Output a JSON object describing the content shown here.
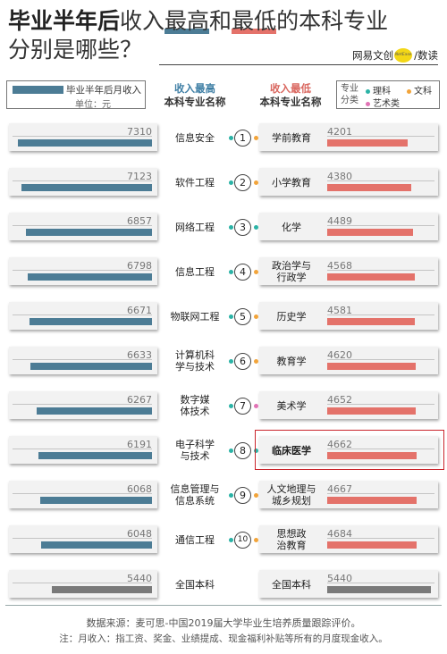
{
  "title": {
    "part_bold": "毕业半年后",
    "part_a": "收入",
    "part_b": "最高",
    "part_c": "和",
    "part_d": "最低",
    "part_e": "的本科专业",
    "line2": "分别是哪些？"
  },
  "brand": {
    "name": "网易文创",
    "badge": "NetEase",
    "channel": "数读"
  },
  "legend": {
    "series_label": "毕业半年后月收入",
    "unit": "单位：元"
  },
  "headers": {
    "left_top": "收入最高",
    "left_sub": "本科专业名称",
    "right_top": "收入最低",
    "right_sub": "本科专业名称"
  },
  "category_legend": {
    "label": "专业分类",
    "items": [
      {
        "name": "理科",
        "color": "#2bb3a6"
      },
      {
        "name": "文科",
        "color": "#f2a43a"
      },
      {
        "name": "艺术类",
        "color": "#e173b5"
      }
    ]
  },
  "chart_data": {
    "type": "bar",
    "xlim": [
      0,
      8000
    ],
    "top": [
      {
        "rank": "1",
        "major": "信息安全",
        "value": 7310,
        "category": "理科"
      },
      {
        "rank": "2",
        "major": "软件工程",
        "value": 7123,
        "category": "理科"
      },
      {
        "rank": "3",
        "major": "网络工程",
        "value": 6857,
        "category": "理科"
      },
      {
        "rank": "4",
        "major": "信息工程",
        "value": 6798,
        "category": "理科"
      },
      {
        "rank": "5",
        "major": "物联网工程",
        "value": 6671,
        "category": "理科"
      },
      {
        "rank": "6",
        "major": "计算机科学与技术",
        "value": 6633,
        "category": "理科"
      },
      {
        "rank": "7",
        "major": "数字媒体技术",
        "value": 6267,
        "category": "理科"
      },
      {
        "rank": "8",
        "major": "电子科学与技术",
        "value": 6191,
        "category": "理科"
      },
      {
        "rank": "9",
        "major": "信息管理与信息系统",
        "value": 6068,
        "category": "理科"
      },
      {
        "rank": "10",
        "major": "通信工程",
        "value": 6048,
        "category": "理科"
      }
    ],
    "bottom": [
      {
        "major": "学前教育",
        "value": 4201,
        "category": "文科"
      },
      {
        "major": "小学教育",
        "value": 4380,
        "category": "文科"
      },
      {
        "major": "化学",
        "value": 4489,
        "category": "理科"
      },
      {
        "major": "政治学与行政学",
        "value": 4568,
        "category": "文科"
      },
      {
        "major": "历史学",
        "value": 4581,
        "category": "文科"
      },
      {
        "major": "教育学",
        "value": 4620,
        "category": "文科"
      },
      {
        "major": "美术学",
        "value": 4652,
        "category": "艺术类"
      },
      {
        "major": "临床医学",
        "value": 4662,
        "category": "理科",
        "highlight": true
      },
      {
        "major": "人文地理与城乡规划",
        "value": 4667,
        "category": "文科"
      },
      {
        "major": "思想政治教育",
        "value": 4684,
        "category": "文科"
      }
    ],
    "national": {
      "major": "全国本科",
      "value": 5440
    }
  },
  "colors": {
    "top_bar": "#4c7c95",
    "bottom_bar": "#e4726a",
    "national_bar": "#7a7a7a"
  },
  "footer": {
    "source": "数据来源：麦可思-中国2019届大学毕业生培养质量跟踪评价。",
    "note": "注：月收入：指工资、奖金、业绩提成、现金福利补贴等所有的月度现金收入。"
  }
}
